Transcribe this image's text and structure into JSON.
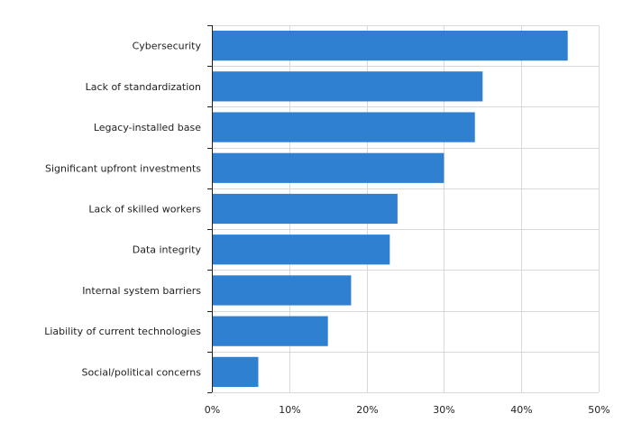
{
  "chart_data": {
    "type": "bar",
    "orientation": "horizontal",
    "categories": [
      "Cybersecurity",
      "Lack of standardization",
      "Legacy-installed base",
      "Significant upfront investments",
      "Lack of skilled workers",
      "Data integrity",
      "Internal system barriers",
      "Liability of current technologies",
      "Social/political concerns"
    ],
    "values": [
      46,
      35,
      34,
      30,
      24,
      23,
      18,
      15,
      6
    ],
    "xlim": [
      0,
      50
    ],
    "x_ticks": [
      "0%",
      "10%",
      "20%",
      "30%",
      "40%",
      "50%"
    ],
    "grid": true,
    "bar_color": "#2f80d0",
    "title": "",
    "xlabel": "",
    "ylabel": ""
  }
}
